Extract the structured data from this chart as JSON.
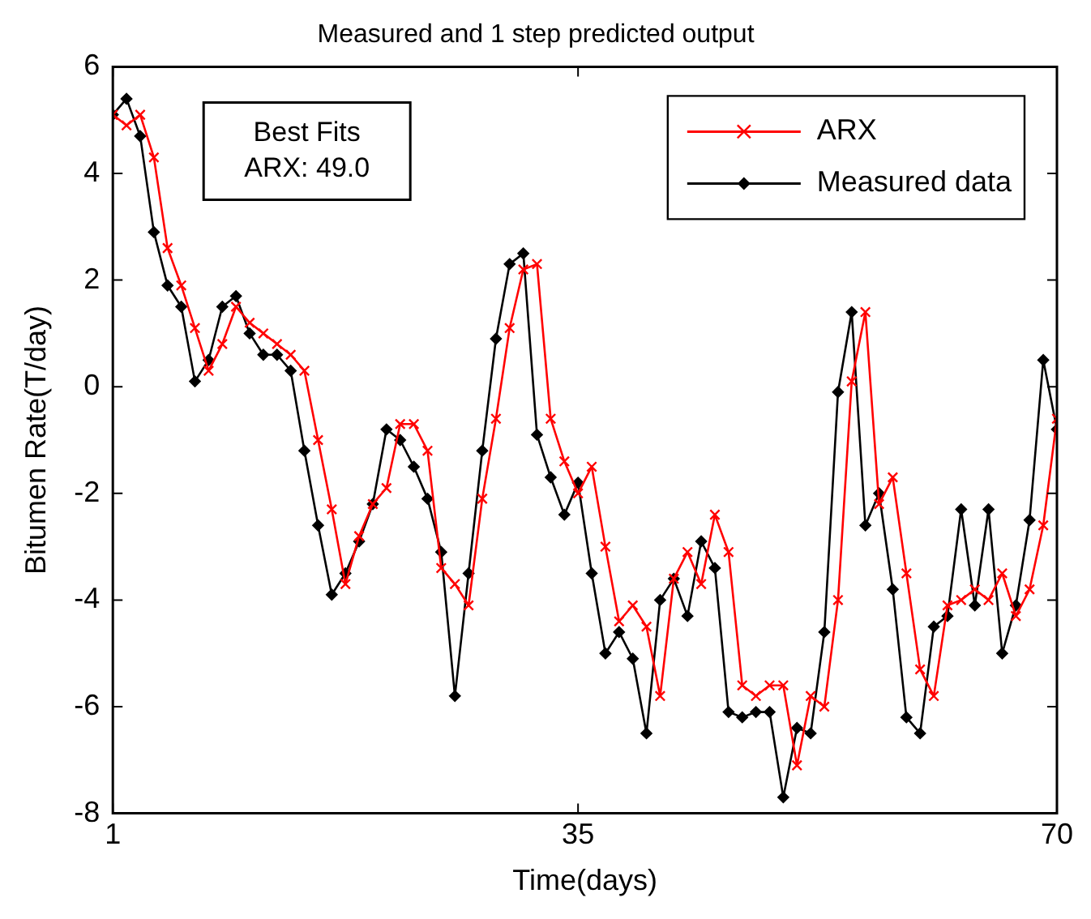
{
  "chart_data": {
    "type": "line",
    "title": "Measured and 1 step predicted output",
    "xlabel": "Time(days)",
    "ylabel": "Bitumen Rate(T/day)",
    "annotations": [
      "Best Fits",
      "ARX: 49.0"
    ],
    "x": [
      1,
      2,
      3,
      4,
      5,
      6,
      7,
      8,
      9,
      10,
      11,
      12,
      13,
      14,
      15,
      16,
      17,
      18,
      19,
      20,
      21,
      22,
      23,
      24,
      25,
      26,
      27,
      28,
      29,
      30,
      31,
      32,
      33,
      34,
      35,
      36,
      37,
      38,
      39,
      40,
      41,
      42,
      43,
      44,
      45,
      46,
      47,
      48,
      49,
      50,
      51,
      52,
      53,
      54,
      55,
      56,
      57,
      58,
      59,
      60,
      61,
      62,
      63,
      64,
      65,
      66,
      67,
      68,
      69,
      70
    ],
    "series": [
      {
        "name": "ARX",
        "color": "#ff0000",
        "marker": "cross",
        "values": [
          5.1,
          4.9,
          5.1,
          4.3,
          2.6,
          1.9,
          1.1,
          0.3,
          0.8,
          1.5,
          1.2,
          1.0,
          0.8,
          0.6,
          0.3,
          -1.0,
          -2.3,
          -3.7,
          -2.8,
          -2.2,
          -1.9,
          -0.7,
          -0.7,
          -1.2,
          -3.4,
          -3.7,
          -4.1,
          -2.1,
          -0.6,
          1.1,
          2.2,
          2.3,
          -0.6,
          -1.4,
          -2.0,
          -1.5,
          -3.0,
          -4.4,
          -4.1,
          -4.5,
          -5.8,
          -3.6,
          -3.1,
          -3.7,
          -2.4,
          -3.1,
          -5.6,
          -5.8,
          -5.6,
          -5.6,
          -7.1,
          -5.8,
          -6.0,
          -4.0,
          0.1,
          1.4,
          -2.2,
          -1.7,
          -3.5,
          -5.3,
          -5.8,
          -4.1,
          -4.0,
          -3.8,
          -4.0,
          -3.5,
          -4.3,
          -3.8,
          -2.6,
          -0.6
        ]
      },
      {
        "name": "Measured data",
        "color": "#000000",
        "marker": "diamond",
        "values": [
          5.1,
          5.4,
          4.7,
          2.9,
          1.9,
          1.5,
          0.1,
          0.5,
          1.5,
          1.7,
          1.0,
          0.6,
          0.6,
          0.3,
          -1.2,
          -2.6,
          -3.9,
          -3.5,
          -2.9,
          -2.2,
          -0.8,
          -1.0,
          -1.5,
          -2.1,
          -3.1,
          -5.8,
          -3.5,
          -1.2,
          0.9,
          2.3,
          2.5,
          -0.9,
          -1.7,
          -2.4,
          -1.8,
          -3.5,
          -5.0,
          -4.6,
          -5.1,
          -6.5,
          -4.0,
          -3.6,
          -4.3,
          -2.9,
          -3.4,
          -6.1,
          -6.2,
          -6.1,
          -6.1,
          -7.7,
          -6.4,
          -6.5,
          -4.6,
          -0.1,
          1.4,
          -2.6,
          -2.0,
          -3.8,
          -6.2,
          -6.5,
          -4.5,
          -4.3,
          -2.3,
          -4.1,
          -2.3,
          -5.0,
          -4.1,
          -2.5,
          0.5,
          -0.8
        ]
      }
    ],
    "xlim": [
      1,
      70
    ],
    "xticks": [
      1,
      35,
      70
    ],
    "ylim": [
      -8,
      6
    ],
    "yticks": [
      -8,
      -6,
      -4,
      -2,
      0,
      2,
      4,
      6
    ],
    "grid": false,
    "legend": "top right",
    "line_style": "solid"
  }
}
